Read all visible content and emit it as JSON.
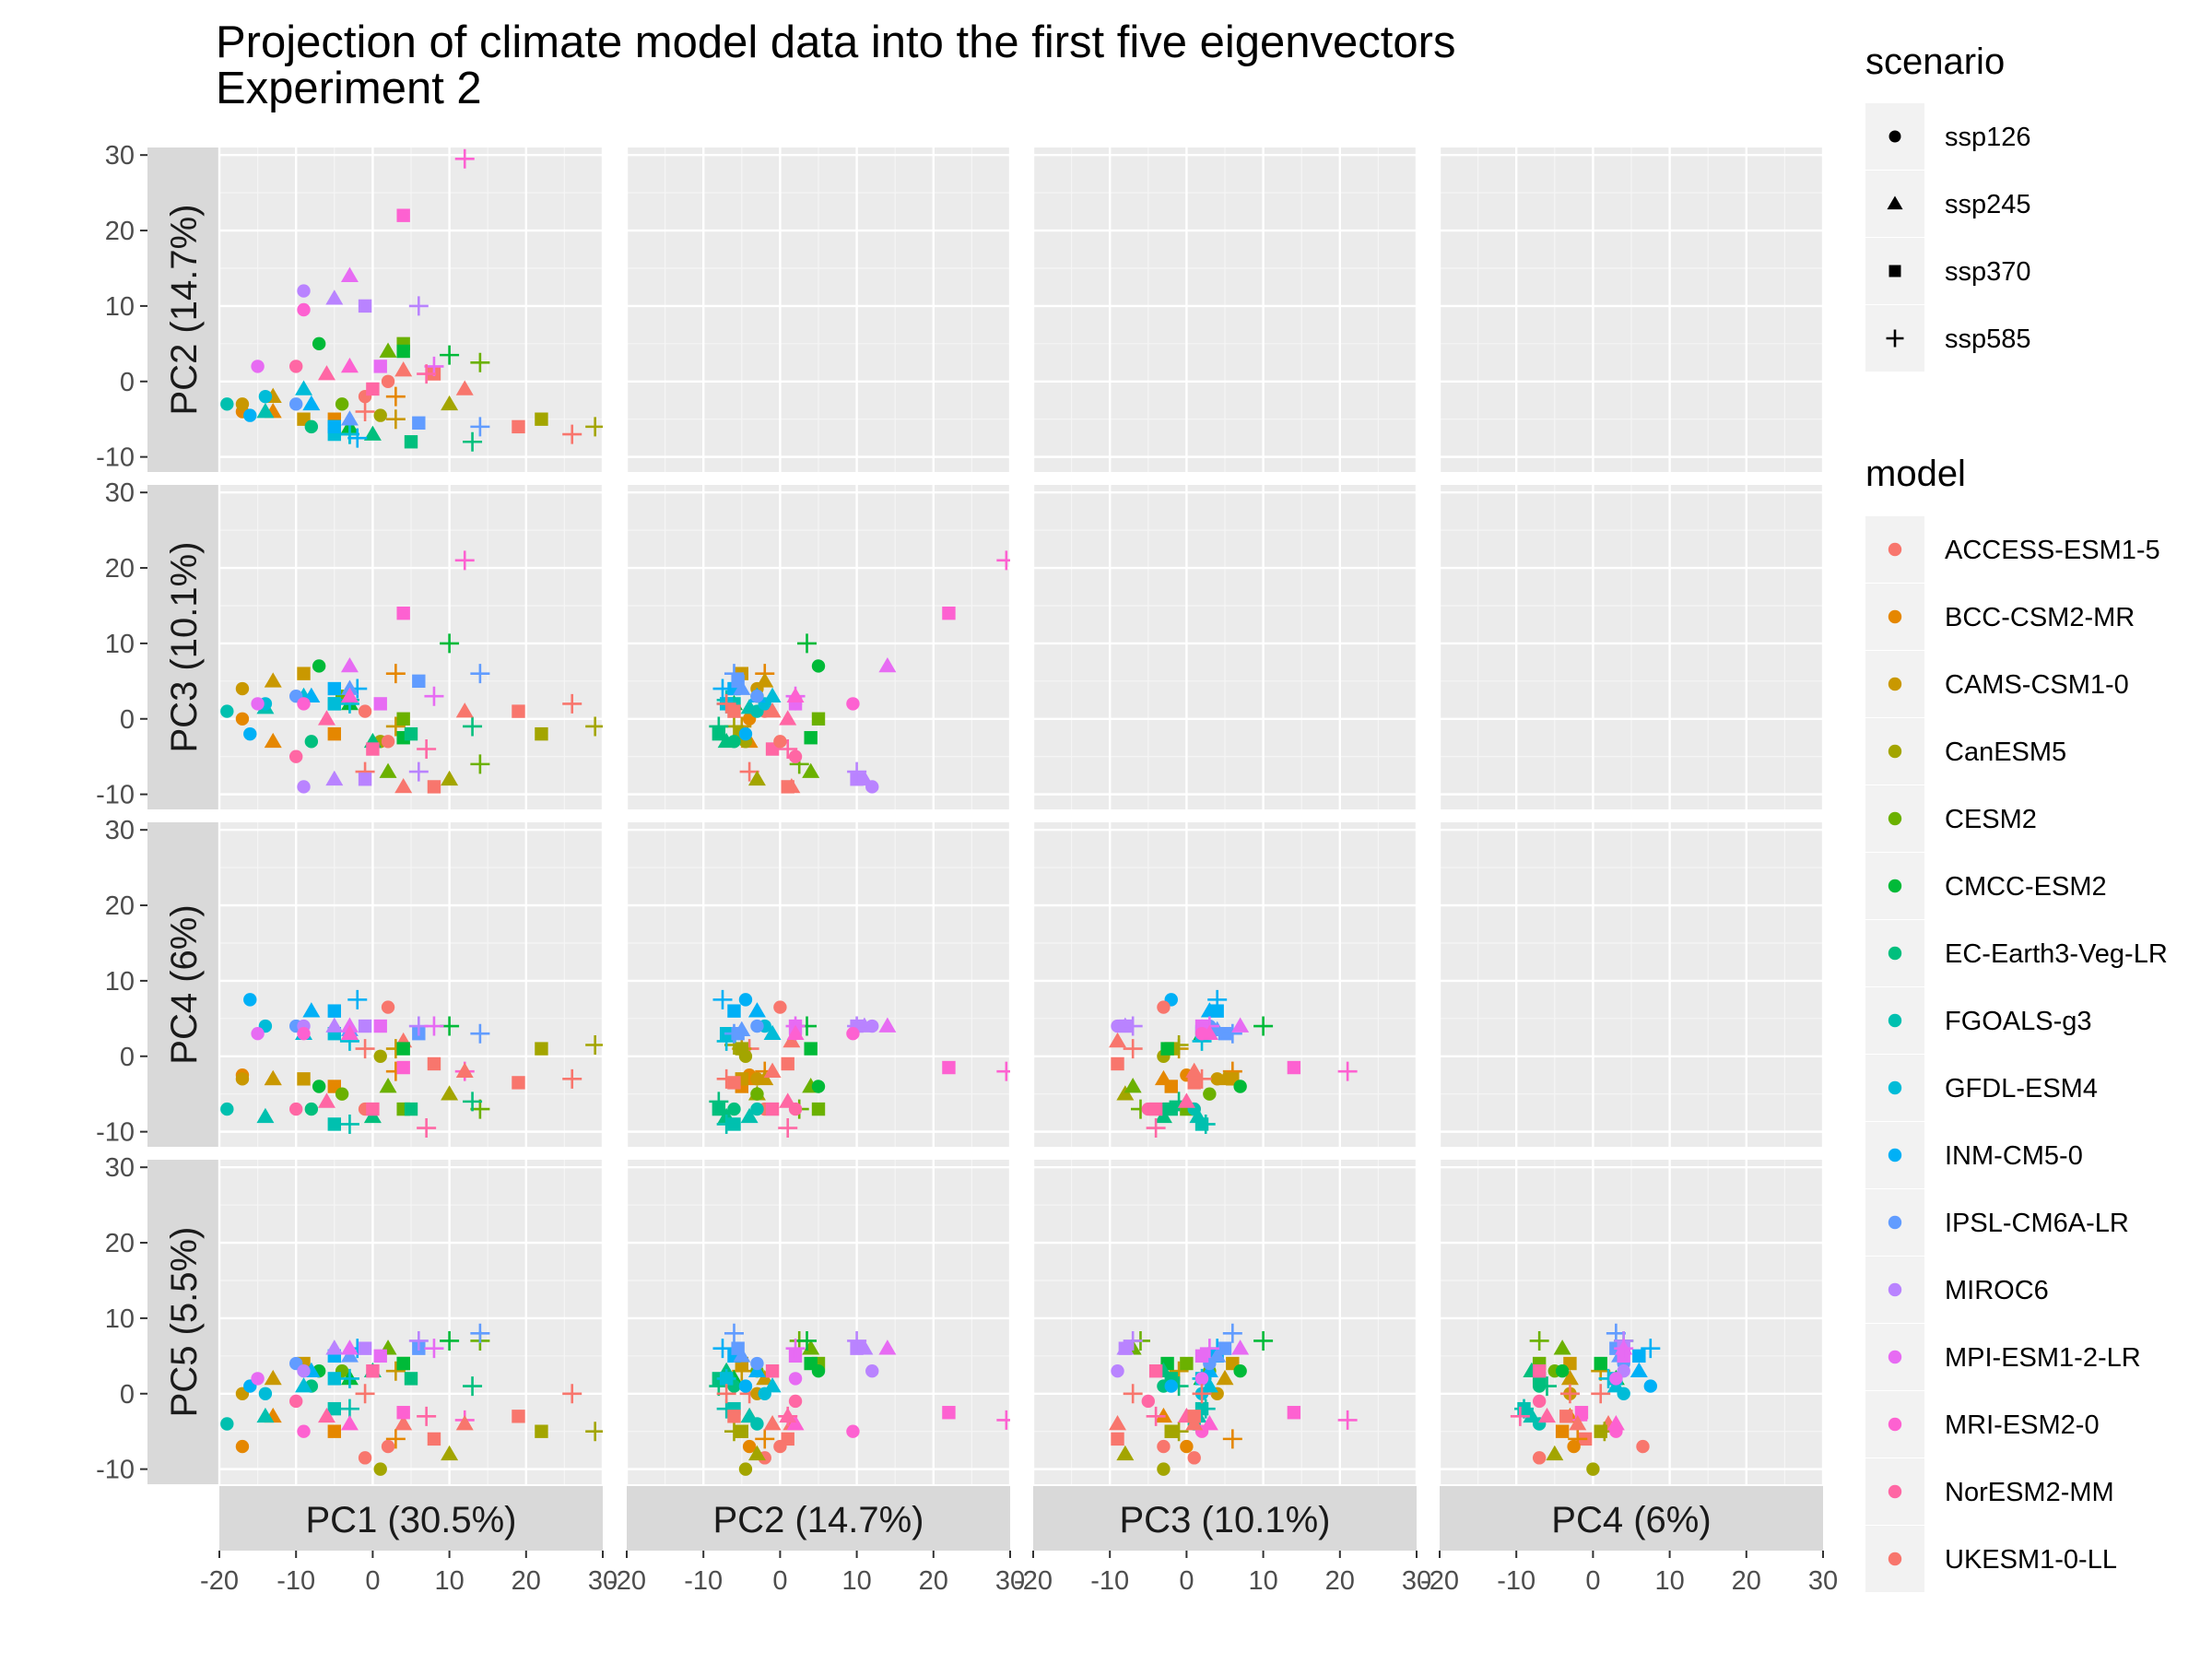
{
  "chart_data": {
    "type": "scatter",
    "title": "Projection of climate model data into the first five eigenvectors\n Experiment 2",
    "title_lines": [
      "Projection of climate model data into the first five eigenvectors",
      " Experiment 2"
    ],
    "layout": "lower-triangle facet grid (rows: PC2-PC5, columns: PC1-PC4)",
    "row_strips": [
      "PC2 (14.7%)",
      "PC3 (10.1%)",
      "PC4 (6%)",
      "PC5 (5.5%)"
    ],
    "col_strips": [
      "PC1 (30.5%)",
      "PC2 (14.7%)",
      "PC3 (10.1%)",
      "PC4 (6%)"
    ],
    "xlim": [
      -20,
      30
    ],
    "ylim": [
      -12,
      31
    ],
    "x_ticks": [
      -20,
      -10,
      0,
      10,
      20,
      30
    ],
    "x_tick_labels": [
      "-20",
      "-10",
      "0",
      "10",
      "20",
      "30"
    ],
    "y_ticks": [
      -10,
      0,
      10,
      20,
      30
    ],
    "y_tick_labels": [
      "-10",
      "0",
      "10",
      "20",
      "30"
    ],
    "grid": true,
    "legend_position": "right",
    "shapes_legend": {
      "title": "scenario",
      "entries": [
        {
          "label": "ssp126",
          "shape": "circle"
        },
        {
          "label": "ssp245",
          "shape": "triangle"
        },
        {
          "label": "ssp370",
          "shape": "square"
        },
        {
          "label": "ssp585",
          "shape": "plus"
        }
      ]
    },
    "colors_legend": {
      "title": "model",
      "entries": [
        {
          "label": "ACCESS-ESM1-5",
          "color": "#F8766D"
        },
        {
          "label": "BCC-CSM2-MR",
          "color": "#E58700"
        },
        {
          "label": "CAMS-CSM1-0",
          "color": "#C99800"
        },
        {
          "label": "CanESM5",
          "color": "#A3A500"
        },
        {
          "label": "CESM2",
          "color": "#6BB100"
        },
        {
          "label": "CMCC-ESM2",
          "color": "#00BA38"
        },
        {
          "label": "EC-Earth3-Veg-LR",
          "color": "#00BF7D"
        },
        {
          "label": "FGOALS-g3",
          "color": "#00C0AF"
        },
        {
          "label": "GFDL-ESM4",
          "color": "#00BCD8"
        },
        {
          "label": "INM-CM5-0",
          "color": "#00B0F6"
        },
        {
          "label": "IPSL-CM6A-LR",
          "color": "#619CFF"
        },
        {
          "label": "MIROC6",
          "color": "#B983FF"
        },
        {
          "label": "MPI-ESM1-2-LR",
          "color": "#E76BF3"
        },
        {
          "label": "MRI-ESM2-0",
          "color": "#FD61D1"
        },
        {
          "label": "NorESM2-MM",
          "color": "#FF67A4"
        },
        {
          "label": "UKESM1-0-LL",
          "color": "#F8766D"
        }
      ]
    },
    "points": [
      {
        "m": 0,
        "s": 0,
        "pc": [
          -1,
          -2,
          1,
          -7,
          -8.5
        ]
      },
      {
        "m": 0,
        "s": 1,
        "pc": [
          4,
          1.5,
          -9,
          2,
          -4
        ]
      },
      {
        "m": 0,
        "s": 2,
        "pc": [
          8,
          1,
          -9,
          -1,
          -6
        ]
      },
      {
        "m": 0,
        "s": 3,
        "pc": [
          -1,
          -4,
          -7,
          1,
          0
        ]
      },
      {
        "m": 1,
        "s": 0,
        "pc": [
          -17,
          -4,
          0,
          -2.5,
          -7
        ]
      },
      {
        "m": 1,
        "s": 1,
        "pc": [
          -13,
          -4,
          -3,
          -3,
          -3
        ]
      },
      {
        "m": 1,
        "s": 2,
        "pc": [
          -5,
          -5,
          -2,
          -4,
          -5
        ]
      },
      {
        "m": 1,
        "s": 3,
        "pc": [
          3,
          -2,
          6,
          -2,
          -6
        ]
      },
      {
        "m": 2,
        "s": 0,
        "pc": [
          -17,
          -3,
          4,
          -3,
          0
        ]
      },
      {
        "m": 2,
        "s": 1,
        "pc": [
          -13,
          -2,
          5,
          -3,
          2
        ]
      },
      {
        "m": 2,
        "s": 2,
        "pc": [
          -9,
          -5,
          6,
          -3,
          4
        ]
      },
      {
        "m": 2,
        "s": 3,
        "pc": [
          3,
          -5,
          -1,
          1,
          3
        ]
      },
      {
        "m": 3,
        "s": 0,
        "pc": [
          1,
          -4.5,
          -3,
          0,
          -10
        ]
      },
      {
        "m": 3,
        "s": 1,
        "pc": [
          10,
          -3,
          -8,
          -5,
          -8
        ]
      },
      {
        "m": 3,
        "s": 2,
        "pc": [
          22,
          -5,
          -2,
          1,
          -5
        ]
      },
      {
        "m": 3,
        "s": 3,
        "pc": [
          29,
          -6,
          -1,
          1.5,
          -5
        ]
      },
      {
        "m": 4,
        "s": 0,
        "pc": [
          -4,
          -3,
          3,
          -5,
          3
        ]
      },
      {
        "m": 4,
        "s": 1,
        "pc": [
          2,
          4,
          -7,
          -4,
          6
        ]
      },
      {
        "m": 4,
        "s": 2,
        "pc": [
          4,
          5,
          0,
          -7,
          4
        ]
      },
      {
        "m": 4,
        "s": 3,
        "pc": [
          14,
          2.5,
          -6,
          -7,
          7
        ]
      },
      {
        "m": 5,
        "s": 0,
        "pc": [
          -7,
          5,
          7,
          -4,
          3
        ]
      },
      {
        "m": 5,
        "s": 1,
        "pc": [
          -3,
          -6,
          2,
          3,
          2
        ]
      },
      {
        "m": 5,
        "s": 2,
        "pc": [
          4,
          4,
          -2.5,
          1,
          4
        ]
      },
      {
        "m": 5,
        "s": 3,
        "pc": [
          10,
          3.5,
          10,
          4,
          7
        ]
      },
      {
        "m": 6,
        "s": 0,
        "pc": [
          -8,
          -6,
          -3,
          -7,
          1
        ]
      },
      {
        "m": 6,
        "s": 1,
        "pc": [
          0,
          -7,
          -3,
          -8,
          3
        ]
      },
      {
        "m": 6,
        "s": 2,
        "pc": [
          5,
          -8,
          -2,
          -7,
          2
        ]
      },
      {
        "m": 6,
        "s": 3,
        "pc": [
          13,
          -8,
          -1,
          -6,
          1
        ]
      },
      {
        "m": 7,
        "s": 0,
        "pc": [
          -19,
          -3,
          1,
          -7,
          -4
        ]
      },
      {
        "m": 7,
        "s": 1,
        "pc": [
          -14,
          -4,
          1.5,
          -8,
          -3
        ]
      },
      {
        "m": 7,
        "s": 2,
        "pc": [
          -5,
          -6,
          2,
          -9,
          -2
        ]
      },
      {
        "m": 7,
        "s": 3,
        "pc": [
          -3,
          -7,
          2.5,
          -9,
          -2
        ]
      },
      {
        "m": 8,
        "s": 0,
        "pc": [
          -14,
          -2,
          2,
          4,
          0
        ]
      },
      {
        "m": 8,
        "s": 1,
        "pc": [
          -9,
          -1,
          3,
          3,
          1
        ]
      },
      {
        "m": 8,
        "s": 2,
        "pc": [
          -5,
          -7,
          2,
          3,
          2
        ]
      },
      {
        "m": 8,
        "s": 3,
        "pc": [
          -3,
          -7,
          2,
          2,
          2
        ]
      },
      {
        "m": 9,
        "s": 0,
        "pc": [
          -16,
          -4.5,
          -2,
          7.5,
          1
        ]
      },
      {
        "m": 9,
        "s": 1,
        "pc": [
          -8,
          -3,
          3,
          6,
          3
        ]
      },
      {
        "m": 9,
        "s": 2,
        "pc": [
          -5,
          -6,
          4,
          6,
          5
        ]
      },
      {
        "m": 9,
        "s": 3,
        "pc": [
          -2,
          -7.5,
          4,
          7.5,
          6
        ]
      },
      {
        "m": 10,
        "s": 0,
        "pc": [
          -10,
          -3,
          3,
          4,
          4
        ]
      },
      {
        "m": 10,
        "s": 1,
        "pc": [
          -3,
          -5,
          4,
          3.5,
          5
        ]
      },
      {
        "m": 10,
        "s": 2,
        "pc": [
          6,
          -5.5,
          5,
          3,
          6
        ]
      },
      {
        "m": 10,
        "s": 3,
        "pc": [
          14,
          -6,
          6,
          3,
          8
        ]
      },
      {
        "m": 11,
        "s": 0,
        "pc": [
          -9,
          12,
          -9,
          4,
          3
        ]
      },
      {
        "m": 11,
        "s": 1,
        "pc": [
          -5,
          11,
          -8,
          4,
          6
        ]
      },
      {
        "m": 11,
        "s": 2,
        "pc": [
          -1,
          10,
          -8,
          4,
          6
        ]
      },
      {
        "m": 11,
        "s": 3,
        "pc": [
          6,
          10,
          -7,
          4,
          7
        ]
      },
      {
        "m": 12,
        "s": 0,
        "pc": [
          -15,
          2,
          2,
          3,
          2
        ]
      },
      {
        "m": 12,
        "s": 1,
        "pc": [
          -3,
          14,
          7,
          4,
          6
        ]
      },
      {
        "m": 12,
        "s": 2,
        "pc": [
          1,
          2,
          2,
          4,
          5
        ]
      },
      {
        "m": 12,
        "s": 3,
        "pc": [
          8,
          2,
          3,
          4,
          6
        ]
      },
      {
        "m": 13,
        "s": 0,
        "pc": [
          -9,
          9.5,
          2,
          3,
          -5
        ]
      },
      {
        "m": 13,
        "s": 1,
        "pc": [
          -3,
          2,
          3,
          3,
          -4
        ]
      },
      {
        "m": 13,
        "s": 2,
        "pc": [
          4,
          22,
          14,
          -1.5,
          -2.5
        ]
      },
      {
        "m": 13,
        "s": 3,
        "pc": [
          12,
          29.5,
          21,
          -2,
          -3.5
        ]
      },
      {
        "m": 14,
        "s": 0,
        "pc": [
          -10,
          2,
          -5,
          -7,
          -1
        ]
      },
      {
        "m": 14,
        "s": 1,
        "pc": [
          -6,
          1,
          0,
          -6,
          -3
        ]
      },
      {
        "m": 14,
        "s": 2,
        "pc": [
          0,
          -1,
          -4,
          -7,
          3
        ]
      },
      {
        "m": 14,
        "s": 3,
        "pc": [
          7,
          1,
          -4,
          -9.5,
          -3
        ]
      },
      {
        "m": 15,
        "s": 0,
        "pc": [
          2,
          0,
          -3,
          6.5,
          -7
        ]
      },
      {
        "m": 15,
        "s": 1,
        "pc": [
          12,
          -1,
          1,
          -2,
          -4
        ]
      },
      {
        "m": 15,
        "s": 2,
        "pc": [
          19,
          -6,
          1,
          -3.5,
          -3
        ]
      },
      {
        "m": 15,
        "s": 3,
        "pc": [
          26,
          -7,
          2,
          -3,
          0
        ]
      }
    ]
  }
}
